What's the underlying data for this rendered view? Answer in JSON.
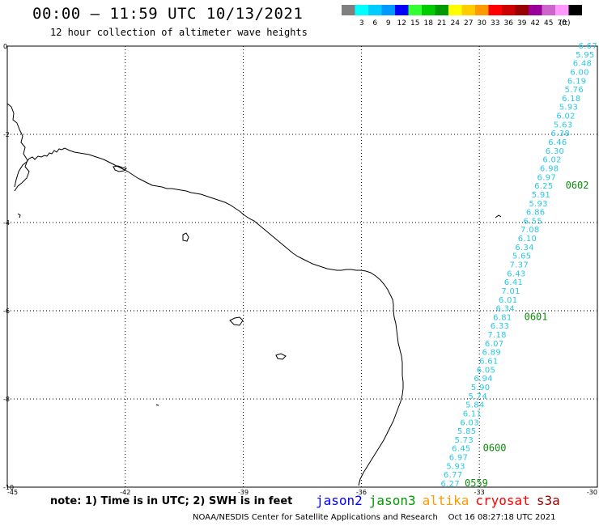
{
  "header": {
    "title": "00:00 – 11:59 UTC 10/13/2021",
    "subtitle": "12 hour collection of altimeter wave heights"
  },
  "color_scale": {
    "unit": "(ft)",
    "bins": [
      {
        "label": "",
        "color": "#7f7f7f"
      },
      {
        "label": "3",
        "color": "#00ffff"
      },
      {
        "label": "6",
        "color": "#00ccff"
      },
      {
        "label": "9",
        "color": "#0099ff"
      },
      {
        "label": "12",
        "color": "#0000ff"
      },
      {
        "label": "15",
        "color": "#33ff33"
      },
      {
        "label": "18",
        "color": "#00cc00"
      },
      {
        "label": "21",
        "color": "#009900"
      },
      {
        "label": "24",
        "color": "#ffff00"
      },
      {
        "label": "27",
        "color": "#ffcc00"
      },
      {
        "label": "30",
        "color": "#ff9900"
      },
      {
        "label": "33",
        "color": "#ff0000"
      },
      {
        "label": "36",
        "color": "#cc0000"
      },
      {
        "label": "39",
        "color": "#990000"
      },
      {
        "label": "42",
        "color": "#990099"
      },
      {
        "label": "45",
        "color": "#cc66cc"
      },
      {
        "label": "70",
        "color": "#ff99ff"
      },
      {
        "label": "",
        "color": "#000000"
      }
    ]
  },
  "axes": {
    "lon_ticks": [
      "-45",
      "-42",
      "-39",
      "-36",
      "-33",
      "-30"
    ],
    "lat_ticks": [
      "0",
      "-2",
      "-4",
      "-6",
      "-8",
      "-10"
    ]
  },
  "track": {
    "color": "#29c8e6",
    "values": [
      "6.67",
      "5.95",
      "6.48",
      "6.00",
      "6.19",
      "5.76",
      "6.18",
      "5.93",
      "6.02",
      "5.63",
      "6.38",
      "6.46",
      "6.30",
      "6.02",
      "6.98",
      "6.97",
      "6.25",
      "5.91",
      "5.93",
      "6.86",
      "6.55",
      "7.08",
      "6.10",
      "6.34",
      "5.65",
      "7.37",
      "6.43",
      "6.41",
      "7.01",
      "6.01",
      "6.34",
      "6.81",
      "6.33",
      "7.18",
      "6.07",
      "6.89",
      "6.61",
      "6.05",
      "6.94",
      "5.90",
      "5.74",
      "5.84",
      "6.11",
      "6.03",
      "5.85",
      "5.73",
      "6.45",
      "6.97",
      "5.93",
      "6.77",
      "6.27"
    ],
    "time_labels": [
      {
        "text": "0602",
        "after_index": 16
      },
      {
        "text": "0601",
        "after_index": 31
      },
      {
        "text": "0600",
        "after_index": 46
      },
      {
        "text": "0559",
        "after_index": 50
      }
    ]
  },
  "footer": {
    "note": "note: 1) Time is in UTC; 2) SWH is in feet",
    "legend": [
      {
        "name": "jason2",
        "color": "#0000ff"
      },
      {
        "name": "jason3",
        "color": "#009900"
      },
      {
        "name": "altika",
        "color": "#ff9900"
      },
      {
        "name": "cryosat",
        "color": "#ff0000"
      },
      {
        "name": "s3a",
        "color": "#990000"
      }
    ],
    "credit": "NOAA/NESDIS Center for Satellite Applications and Research    Oct 16 08:27:18 UTC 2021"
  }
}
